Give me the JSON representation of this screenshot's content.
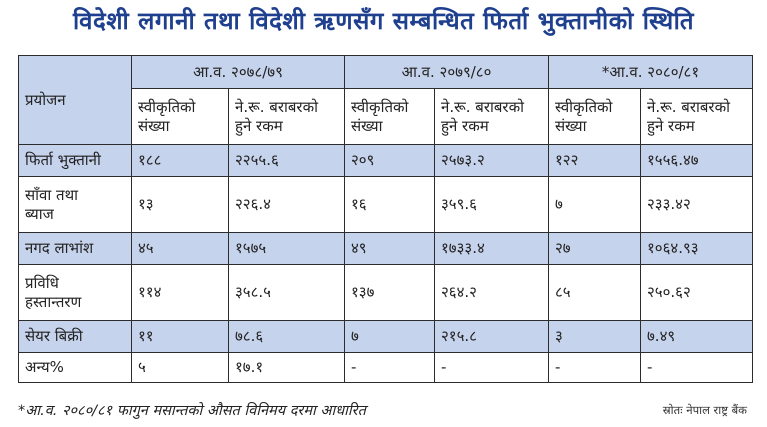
{
  "title": "विदेशी लगानी तथा विदेशी ऋणसँग सम्बन्धित फिर्ता भुक्तानीको स्थिति",
  "table": {
    "purpose_header": "प्रयोजन",
    "years": [
      "आ.व. २०७८/७९",
      "आ.व. २०७९/८०",
      "*आ.व. २०८०/८१"
    ],
    "sub_headers": {
      "count_line1": "स्वीकृतिको",
      "count_line2": "संख्या",
      "amount_line1": "ने.रू. बराबरको",
      "amount_line2": "हुने रकम"
    },
    "rows": [
      {
        "label_line1": "फिर्ता भुक्तानी",
        "label_line2": "",
        "cells": [
          "१८८",
          "२२५५.६",
          "२०९",
          "२५७३.२",
          "१२२",
          "१५५६.४७"
        ]
      },
      {
        "label_line1": "साँवा तथा",
        "label_line2": "ब्याज",
        "cells": [
          "१३",
          "२२६.४",
          "१६",
          "३५९.६",
          "७",
          "२३३.४२"
        ]
      },
      {
        "label_line1": "नगद लाभांश",
        "label_line2": "",
        "cells": [
          "४५",
          "१५७५",
          "४९",
          "१७३३.४",
          "२७",
          "१०६४.९३"
        ]
      },
      {
        "label_line1": "प्रविधि",
        "label_line2": "हस्तान्तरण",
        "cells": [
          "११४",
          "३५८.५",
          "१३७",
          "२६४.२",
          "८५",
          "२५०.६२"
        ]
      },
      {
        "label_line1": "सेयर बिक्री",
        "label_line2": "",
        "cells": [
          "११",
          "७८.६",
          "७",
          "२१५.८",
          "३",
          "७.४९"
        ]
      },
      {
        "label_line1": "अन्य%",
        "label_line2": "",
        "cells": [
          "५",
          "१७.१",
          "-",
          "-",
          "-",
          "-"
        ]
      }
    ]
  },
  "footnote": "*आ.व. २०८०/८१ फागुन मसान्तको औसत विनिमय दरमा आधारित",
  "source": "स्रोतः नेपाल राष्ट्र बैंक",
  "colors": {
    "title": "#1f3f8f",
    "shade": "#c6d3ec"
  }
}
